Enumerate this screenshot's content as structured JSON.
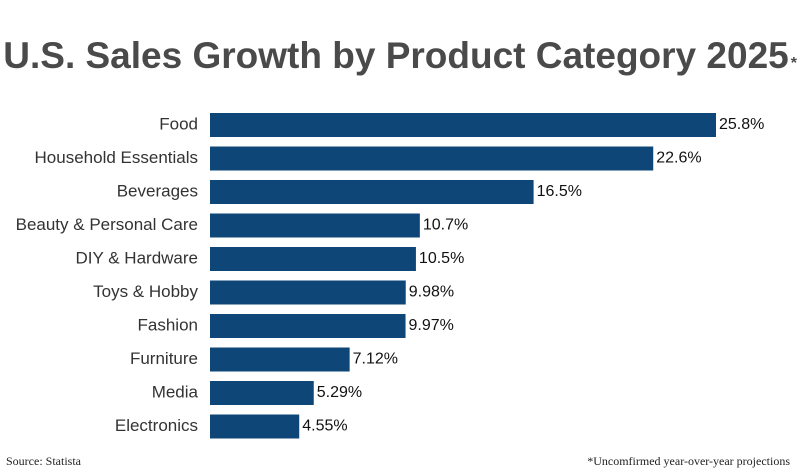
{
  "chart_data": {
    "type": "bar",
    "orientation": "horizontal",
    "title": "U.S. Sales Growth by Product Category 2025",
    "title_mark": "*",
    "categories": [
      "Food",
      "Household Essentials",
      "Beverages",
      "Beauty & Personal Care",
      "DIY & Hardware",
      "Toys & Hobby",
      "Fashion",
      "Furniture",
      "Media",
      "Electronics"
    ],
    "values": [
      25.8,
      22.6,
      16.5,
      10.7,
      10.5,
      9.98,
      9.97,
      7.12,
      5.29,
      4.55
    ],
    "value_labels": [
      "25.8%",
      "22.6%",
      "16.5%",
      "10.7%",
      "10.5%",
      "9.98%",
      "9.97%",
      "7.12%",
      "5.29%",
      "4.55%"
    ],
    "color": "#0e4777",
    "source": "Source: Statista",
    "footnote": "*Uncomfirmed year-over-year projections"
  }
}
